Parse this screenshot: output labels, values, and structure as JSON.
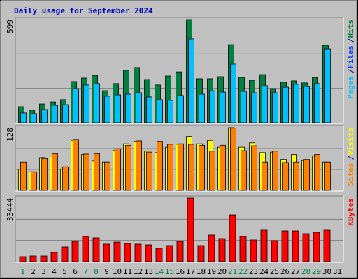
{
  "chart_data": [
    {
      "type": "bar",
      "title": "Daily usage for September 2024",
      "ylim": [
        0,
        599
      ],
      "yticks": [
        599
      ],
      "separator": "/",
      "extra_legend": {
        "name": "Files",
        "color": "#0040ff"
      },
      "series": [
        {
          "name": "Hits",
          "color": "#008040",
          "values": [
            93,
            73,
            109,
            121,
            134,
            239,
            259,
            275,
            186,
            227,
            304,
            320,
            251,
            219,
            271,
            295,
            599,
            255,
            255,
            267,
            453,
            263,
            247,
            279,
            198,
            235,
            243,
            231,
            263,
            449,
            null
          ]
        },
        {
          "name": "Pages",
          "color": "#00c0ff",
          "values": [
            57,
            53,
            77,
            101,
            105,
            198,
            219,
            227,
            154,
            162,
            166,
            174,
            150,
            134,
            130,
            158,
            486,
            166,
            186,
            178,
            340,
            182,
            174,
            215,
            174,
            206,
            223,
            210,
            227,
            429,
            null
          ]
        }
      ]
    },
    {
      "type": "bar",
      "ylim": [
        0,
        128
      ],
      "yticks": [
        128
      ],
      "series": [
        {
          "name": "Visits",
          "color": "#ffff00",
          "values": [
            43,
            38,
            67,
            70,
            43,
            102,
            73,
            60,
            58,
            82,
            95,
            100,
            80,
            77,
            88,
            94,
            110,
            95,
            102,
            88,
            128,
            88,
            97,
            77,
            78,
            63,
            73,
            61,
            70,
            58,
            null
          ]
        },
        {
          "name": "Sites",
          "color": "#ff8000",
          "values": [
            58,
            38,
            65,
            75,
            48,
            104,
            74,
            75,
            58,
            85,
            92,
            101,
            78,
            100,
            94,
            95,
            94,
            92,
            80,
            92,
            127,
            81,
            91,
            58,
            80,
            57,
            58,
            63,
            73,
            58,
            null
          ]
        }
      ]
    },
    {
      "type": "bar",
      "ylim": [
        0,
        33444
      ],
      "yticks": [
        33444
      ],
      "categories": [
        "1",
        "2",
        "3",
        "4",
        "5",
        "6",
        "7",
        "8",
        "9",
        "10",
        "11",
        "12",
        "13",
        "14",
        "15",
        "16",
        "17",
        "18",
        "19",
        "20",
        "21",
        "22",
        "23",
        "24",
        "25",
        "26",
        "27",
        "28",
        "29",
        "30",
        "31"
      ],
      "highlight_categories": [
        "1",
        "7",
        "8",
        "14",
        "15",
        "21",
        "22",
        "28",
        "29"
      ],
      "highlight_color": "#008040",
      "series": [
        {
          "name": "KBytes",
          "color": "#ff0000",
          "values": [
            2573,
            2940,
            2940,
            4778,
            7718,
            10658,
            13230,
            12495,
            9188,
            10290,
            9555,
            9188,
            8820,
            6983,
            8453,
            10658,
            33444,
            8453,
            13965,
            12128,
            24623,
            13230,
            11393,
            16538,
            11025,
            16170,
            16170,
            14700,
            15435,
            16538,
            null
          ]
        }
      ]
    }
  ]
}
